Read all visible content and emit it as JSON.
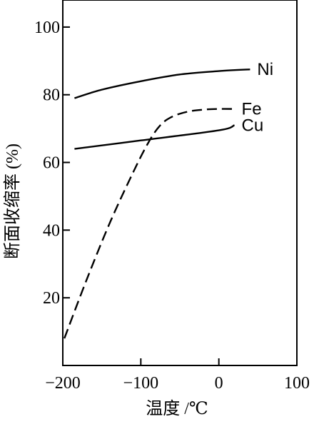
{
  "chart_data": {
    "type": "line",
    "title": "",
    "xlabel": "温度 /℃",
    "ylabel": "断面收缩率 (%)",
    "xlim": [
      -200,
      100
    ],
    "ylim": [
      0,
      108
    ],
    "x_ticks": [
      -200,
      -100,
      0,
      100
    ],
    "x_tick_labels": [
      "−200",
      "−100",
      "0",
      "100"
    ],
    "y_ticks": [
      20,
      40,
      60,
      80,
      100
    ],
    "y_tick_labels": [
      "20",
      "40",
      "60",
      "80",
      "100"
    ],
    "grid": false,
    "legend": "none",
    "series": [
      {
        "name": "Ni",
        "style": "solid",
        "color": "#000000",
        "x": [
          -185,
          -150,
          -100,
          -50,
          0,
          40
        ],
        "y": [
          79,
          81.5,
          84,
          86,
          87,
          87.5
        ]
      },
      {
        "name": "Fe",
        "style": "dashed",
        "color": "#000000",
        "x": [
          -198,
          -170,
          -140,
          -110,
          -90,
          -75,
          -60,
          -40,
          -20,
          0,
          20
        ],
        "y": [
          8,
          25,
          42,
          57,
          66,
          71,
          73.5,
          75,
          75.6,
          75.8,
          75.8
        ]
      },
      {
        "name": "Cu",
        "style": "solid",
        "color": "#000000",
        "x": [
          -185,
          -100,
          0,
          20
        ],
        "y": [
          64,
          66.5,
          69.5,
          71
        ]
      }
    ]
  }
}
